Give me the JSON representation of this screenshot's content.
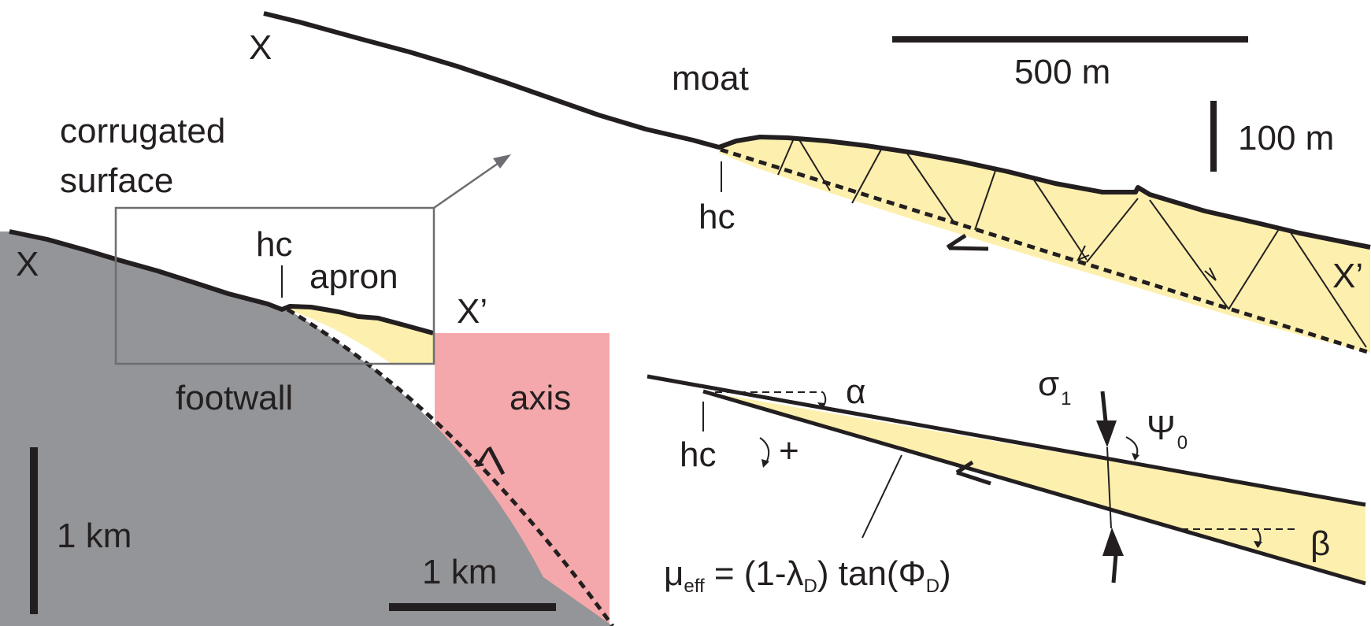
{
  "colors": {
    "footwall": "#939598",
    "axis": "#f5a8ab",
    "apron": "#fdf0ae",
    "ink": "#231f20",
    "box": "#6d6e71"
  },
  "left_panel": {
    "label_x": "X",
    "label_x_prime": "X’",
    "corrugated_line1": "corrugated",
    "corrugated_line2": "surface",
    "hc": "hc",
    "apron": "apron",
    "footwall": "footwall",
    "axis": "axis",
    "vertical_scale": "1 km",
    "horizontal_scale": "1 km"
  },
  "top_panel": {
    "label_x": "X",
    "label_x_prime": "X’",
    "moat": "moat",
    "hc": "hc",
    "horizontal_scale": "500 m",
    "vertical_scale": "100 m"
  },
  "wedge_panel": {
    "hc": "hc",
    "alpha": "α",
    "beta": "β",
    "plus": "+",
    "sigma": "σ",
    "sigma_sub": "1",
    "psi": "Ψ",
    "psi_sub": "0",
    "mu": "μ",
    "mu_sub": "eff",
    "eq_part1": " = (1-λ",
    "lambda_sub": "D",
    "eq_part2": ") tan(Φ",
    "phi_sub": "D",
    "eq_part3": ")"
  }
}
